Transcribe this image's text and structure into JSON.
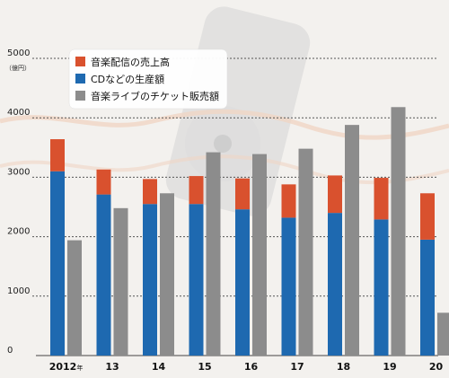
{
  "chart_data": {
    "type": "bar",
    "unit_label": "（億円）",
    "categories": [
      "2012",
      "13",
      "14",
      "15",
      "16",
      "17",
      "18",
      "19",
      "20"
    ],
    "first_category_suffix": "年",
    "series": [
      {
        "name": "音楽配信の売上高",
        "color": "#d9512e",
        "stack": "physical_digital",
        "values": [
          540,
          420,
          420,
          470,
          520,
          560,
          630,
          700,
          780
        ]
      },
      {
        "name": "CDなどの生産額",
        "color": "#1e69b0",
        "stack": "physical_digital",
        "values": [
          3100,
          2710,
          2550,
          2550,
          2460,
          2320,
          2400,
          2290,
          1950
        ]
      },
      {
        "name": "音楽ライブのチケット販売額",
        "color": "#8c8c8c",
        "stack": "live",
        "values": [
          1940,
          2480,
          2730,
          3420,
          3390,
          3480,
          3880,
          4180,
          720
        ]
      }
    ],
    "yticks": [
      0,
      1000,
      2000,
      3000,
      4000,
      5000
    ],
    "ylim": [
      0,
      5000
    ],
    "grid": true,
    "legend_position": "top-left"
  },
  "colors": {
    "background": "#f3f1ee",
    "gridline": "#555555",
    "legend_bg": "#ffffff"
  }
}
